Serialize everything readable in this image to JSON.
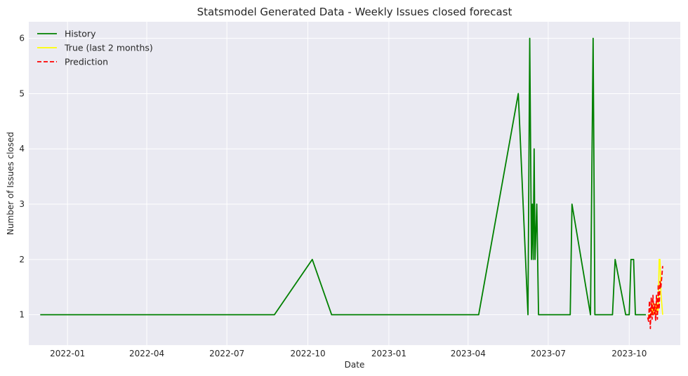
{
  "chart_data": {
    "type": "line",
    "title": "Statsmodel Generated Data - Weekly Issues closed forecast",
    "xlabel": "Date",
    "ylabel": "Number of Issues closed",
    "x_axis_type": "date",
    "xlim": [
      "2021-11-18",
      "2023-11-28"
    ],
    "ylim": [
      0.45,
      6.3
    ],
    "x_ticks": [
      {
        "date": "2022-01-01",
        "label": "2022-01"
      },
      {
        "date": "2022-04-01",
        "label": "2022-04"
      },
      {
        "date": "2022-07-01",
        "label": "2022-07"
      },
      {
        "date": "2022-10-01",
        "label": "2022-10"
      },
      {
        "date": "2023-01-01",
        "label": "2023-01"
      },
      {
        "date": "2023-04-01",
        "label": "2023-04"
      },
      {
        "date": "2023-07-01",
        "label": "2023-07"
      },
      {
        "date": "2023-10-01",
        "label": "2023-10"
      }
    ],
    "y_ticks": [
      1,
      2,
      3,
      4,
      5,
      6
    ],
    "grid": true,
    "legend_position": "top-left",
    "series": [
      {
        "name": "History",
        "color": "#008000",
        "style": "solid",
        "points": [
          [
            "2021-12-01",
            1
          ],
          [
            "2022-08-24",
            1
          ],
          [
            "2022-10-06",
            2
          ],
          [
            "2022-10-28",
            1
          ],
          [
            "2023-04-13",
            1
          ],
          [
            "2023-05-28",
            5
          ],
          [
            "2023-06-08",
            1
          ],
          [
            "2023-06-10",
            6
          ],
          [
            "2023-06-12",
            2
          ],
          [
            "2023-06-13",
            3
          ],
          [
            "2023-06-14",
            2
          ],
          [
            "2023-06-15",
            4
          ],
          [
            "2023-06-16",
            2
          ],
          [
            "2023-06-18",
            3
          ],
          [
            "2023-06-20",
            1
          ],
          [
            "2023-07-26",
            1
          ],
          [
            "2023-07-28",
            3
          ],
          [
            "2023-08-18",
            1
          ],
          [
            "2023-08-21",
            6
          ],
          [
            "2023-08-23",
            1
          ],
          [
            "2023-09-12",
            1
          ],
          [
            "2023-09-15",
            2
          ],
          [
            "2023-09-27",
            1
          ],
          [
            "2023-10-01",
            1
          ],
          [
            "2023-10-03",
            2
          ],
          [
            "2023-10-06",
            2
          ],
          [
            "2023-10-08",
            1
          ],
          [
            "2023-10-20",
            1
          ]
        ]
      },
      {
        "name": "True (last 2 months)",
        "color": "#ffff00",
        "style": "solid",
        "points": [
          [
            "2023-10-22",
            1
          ],
          [
            "2023-10-24",
            1
          ],
          [
            "2023-10-26",
            1
          ],
          [
            "2023-10-27",
            1.2
          ],
          [
            "2023-10-28",
            1
          ],
          [
            "2023-10-30",
            1.2
          ],
          [
            "2023-10-31",
            1
          ],
          [
            "2023-11-01",
            1.3
          ],
          [
            "2023-11-02",
            1
          ],
          [
            "2023-11-03",
            1.1
          ],
          [
            "2023-11-04",
            2
          ],
          [
            "2023-11-05",
            2
          ],
          [
            "2023-11-06",
            1.4
          ],
          [
            "2023-11-08",
            1
          ]
        ]
      },
      {
        "name": "Prediction",
        "color": "#ff0000",
        "style": "dashed",
        "points": [
          [
            "2023-10-22",
            0.95
          ],
          [
            "2023-10-23",
            0.88
          ],
          [
            "2023-10-24",
            1.25
          ],
          [
            "2023-10-25",
            0.75
          ],
          [
            "2023-10-26",
            1.3
          ],
          [
            "2023-10-27",
            0.92
          ],
          [
            "2023-10-28",
            1.35
          ],
          [
            "2023-10-29",
            1.0
          ],
          [
            "2023-10-30",
            1.2
          ],
          [
            "2023-10-31",
            0.9
          ],
          [
            "2023-11-01",
            1.35
          ],
          [
            "2023-11-02",
            0.92
          ],
          [
            "2023-11-03",
            1.55
          ],
          [
            "2023-11-04",
            1.1
          ],
          [
            "2023-11-05",
            1.6
          ],
          [
            "2023-11-06",
            1.5
          ],
          [
            "2023-11-08",
            1.88
          ]
        ]
      }
    ]
  }
}
